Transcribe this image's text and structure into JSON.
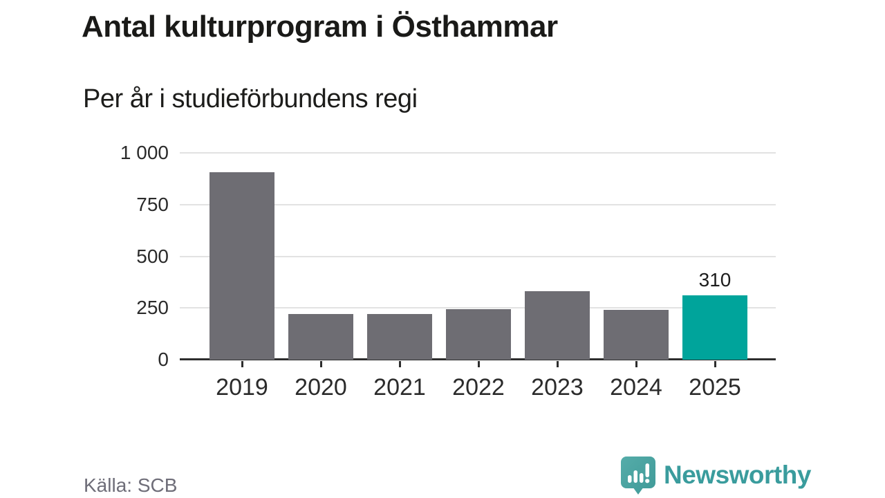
{
  "header": {
    "title": "Antal kulturprogram i Östhammar",
    "subtitle": "Per år i studieförbundens regi"
  },
  "chart_data": {
    "type": "bar",
    "categories": [
      "2019",
      "2020",
      "2021",
      "2022",
      "2023",
      "2024",
      "2025"
    ],
    "values": [
      905,
      220,
      220,
      245,
      330,
      240,
      310
    ],
    "title": "Antal kulturprogram i Östhammar",
    "subtitle": "Per år i studieförbundens regi",
    "xlabel": "",
    "ylabel": "",
    "ylim": [
      0,
      1000
    ],
    "yticks": [
      0,
      250,
      500,
      750,
      1000
    ],
    "ytick_labels": [
      "0",
      "250",
      "500",
      "750",
      "1 000"
    ],
    "grid": "horizontal",
    "legend": "none",
    "bar_color": "#6e6d73",
    "highlight_index": 6,
    "highlight_color": "#00a49b",
    "data_label": {
      "index": 6,
      "text": "310"
    }
  },
  "footer": {
    "source": "Källa: SCB",
    "brand": "Newsworthy"
  },
  "colors": {
    "background": "#ffffff",
    "grid": "#e2e2e2",
    "axis": "#2d2d2d",
    "text_dark": "#1a1a18",
    "text_gray": "#6e6d78",
    "brand_teal": "#3a9c9d",
    "logo_bubble": "#4aa3a1"
  },
  "icons": {
    "logo": "newsworthy-speech-bubble-chart-icon"
  }
}
